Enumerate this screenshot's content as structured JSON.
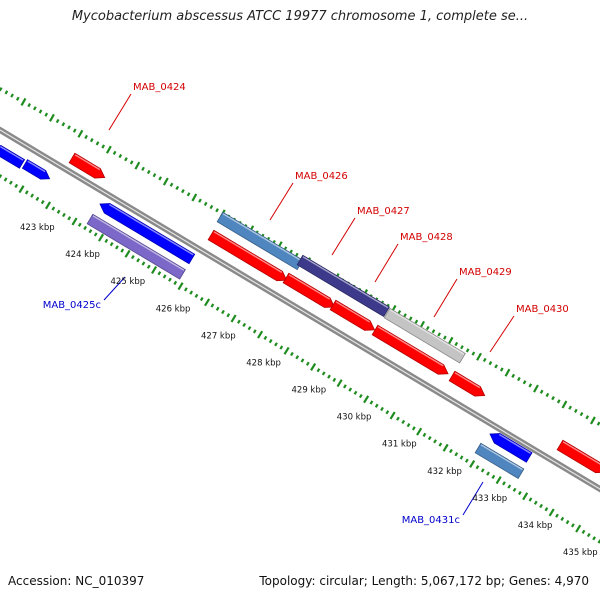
{
  "title": "Mycobacterium abscessus ATCC 19977 chromosome 1, complete se...",
  "footer": {
    "accession": "Accession: NC_010397",
    "summary": "Topology: circular; Length: 5,067,172 bp; Genes: 4,970"
  },
  "colors": {
    "backbone": "#8a8a8a",
    "tick_green": "#1e8c1e",
    "forward_gene": "#ff0000",
    "reverse_gene": "#0000ff",
    "label_forward": "#d40000",
    "label_reverse": "#0000cc",
    "highlight_steelblue": "#4f86bf",
    "highlight_slate": "#7b68c8",
    "highlight_navy": "#3d3a8c",
    "highlight_gray": "#c4c4c4"
  },
  "kbp_labels": [
    "423 kbp",
    "424 kbp",
    "425 kbp",
    "426 kbp",
    "427 kbp",
    "428 kbp",
    "429 kbp",
    "430 kbp",
    "431 kbp",
    "432 kbp",
    "433 kbp",
    "434 kbp",
    "435 kbp"
  ],
  "gene_labels": [
    {
      "text": "MAB_0424",
      "strand": "forward"
    },
    {
      "text": "MAB_0426",
      "strand": "forward"
    },
    {
      "text": "MAB_0427",
      "strand": "forward"
    },
    {
      "text": "MAB_0428",
      "strand": "forward"
    },
    {
      "text": "MAB_0429",
      "strand": "forward"
    },
    {
      "text": "MAB_0430",
      "strand": "forward"
    },
    {
      "text": "MAB_0425c",
      "strand": "reverse"
    },
    {
      "text": "MAB_0431c",
      "strand": "reverse"
    }
  ]
}
